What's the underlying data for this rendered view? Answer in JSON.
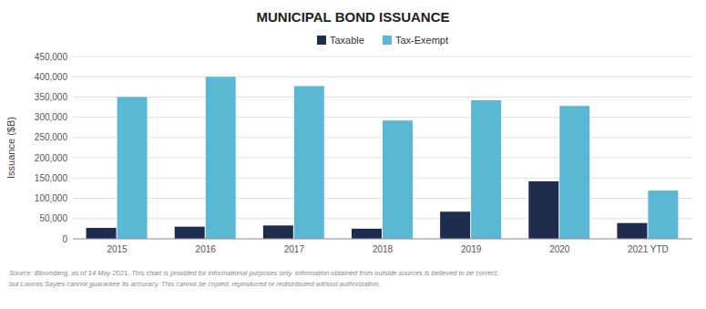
{
  "chart_data": {
    "type": "bar",
    "title": "MUNICIPAL BOND ISSUANCE",
    "y_label": "Issuance ($B)",
    "categories": [
      "2015",
      "2016",
      "2017",
      "2018",
      "2019",
      "2020",
      "2021 YTD"
    ],
    "series": [
      {
        "name": "Taxable",
        "color": "#1e2d4e",
        "values": [
          27000,
          30000,
          33000,
          25000,
          67000,
          142000,
          39000
        ]
      },
      {
        "name": "Tax-Exempt",
        "color": "#5bb8d4",
        "values": [
          350000,
          400000,
          377000,
          292000,
          342000,
          328000,
          119000
        ]
      }
    ],
    "ylim": [
      0,
      450000
    ],
    "yticks": [
      0,
      {
        "value": 50000,
        "label": "50,000"
      },
      {
        "value": 100000,
        "label": "100,000"
      },
      {
        "value": 150000,
        "label": "150,000"
      },
      {
        "value": 200000,
        "label": "200,000"
      },
      {
        "value": 250000,
        "label": "250,000"
      },
      {
        "value": 300000,
        "label": "300,000"
      },
      {
        "value": 350000,
        "label": "350,000"
      },
      {
        "value": 400000,
        "label": "400,000"
      },
      {
        "value": 450000,
        "label": "450,000"
      }
    ],
    "grid": true,
    "legend": "top",
    "annotations": [
      "Source: Bloomberg, as of 14 May 2021. This chart is provided for informational purposes only. Information obtained from outside sources is believed to be correct,",
      "but Loomis Sayles cannot guarantee its accuracy. This cannot be copied, reproduced or redistributed without authorization."
    ]
  }
}
